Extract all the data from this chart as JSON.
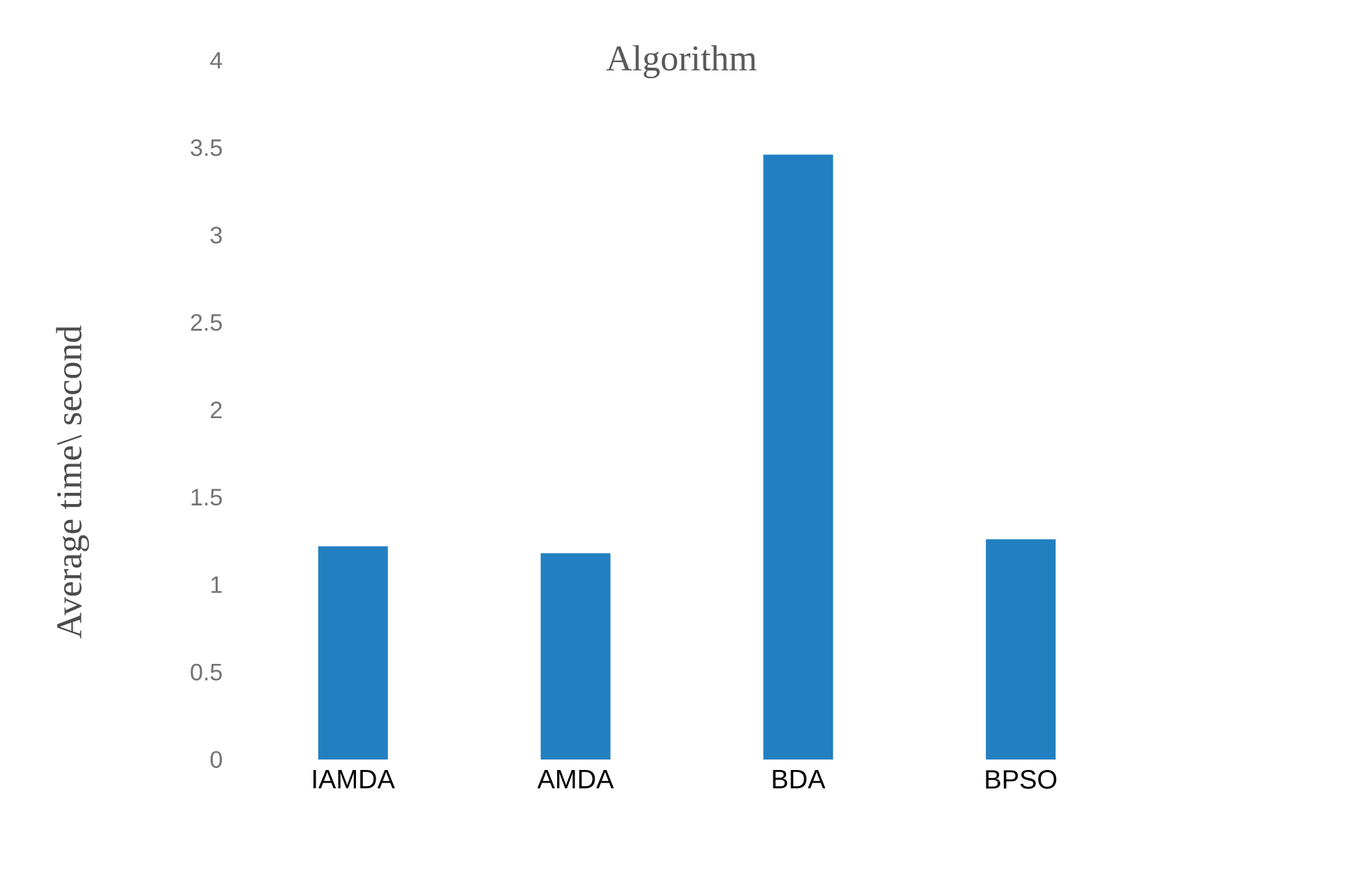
{
  "chart_data": {
    "type": "bar",
    "title": "Algorithm",
    "ylabel": "Average time\\ second",
    "categories": [
      "IAMDA",
      "AMDA",
      "BDA",
      "BPSO"
    ],
    "values": [
      1.22,
      1.18,
      3.46,
      1.26
    ],
    "color": "#2280c0",
    "ylim": [
      0,
      4
    ],
    "yticks": [
      0,
      0.5,
      1,
      1.5,
      2,
      2.5,
      3,
      3.5,
      4
    ],
    "grid": false
  }
}
